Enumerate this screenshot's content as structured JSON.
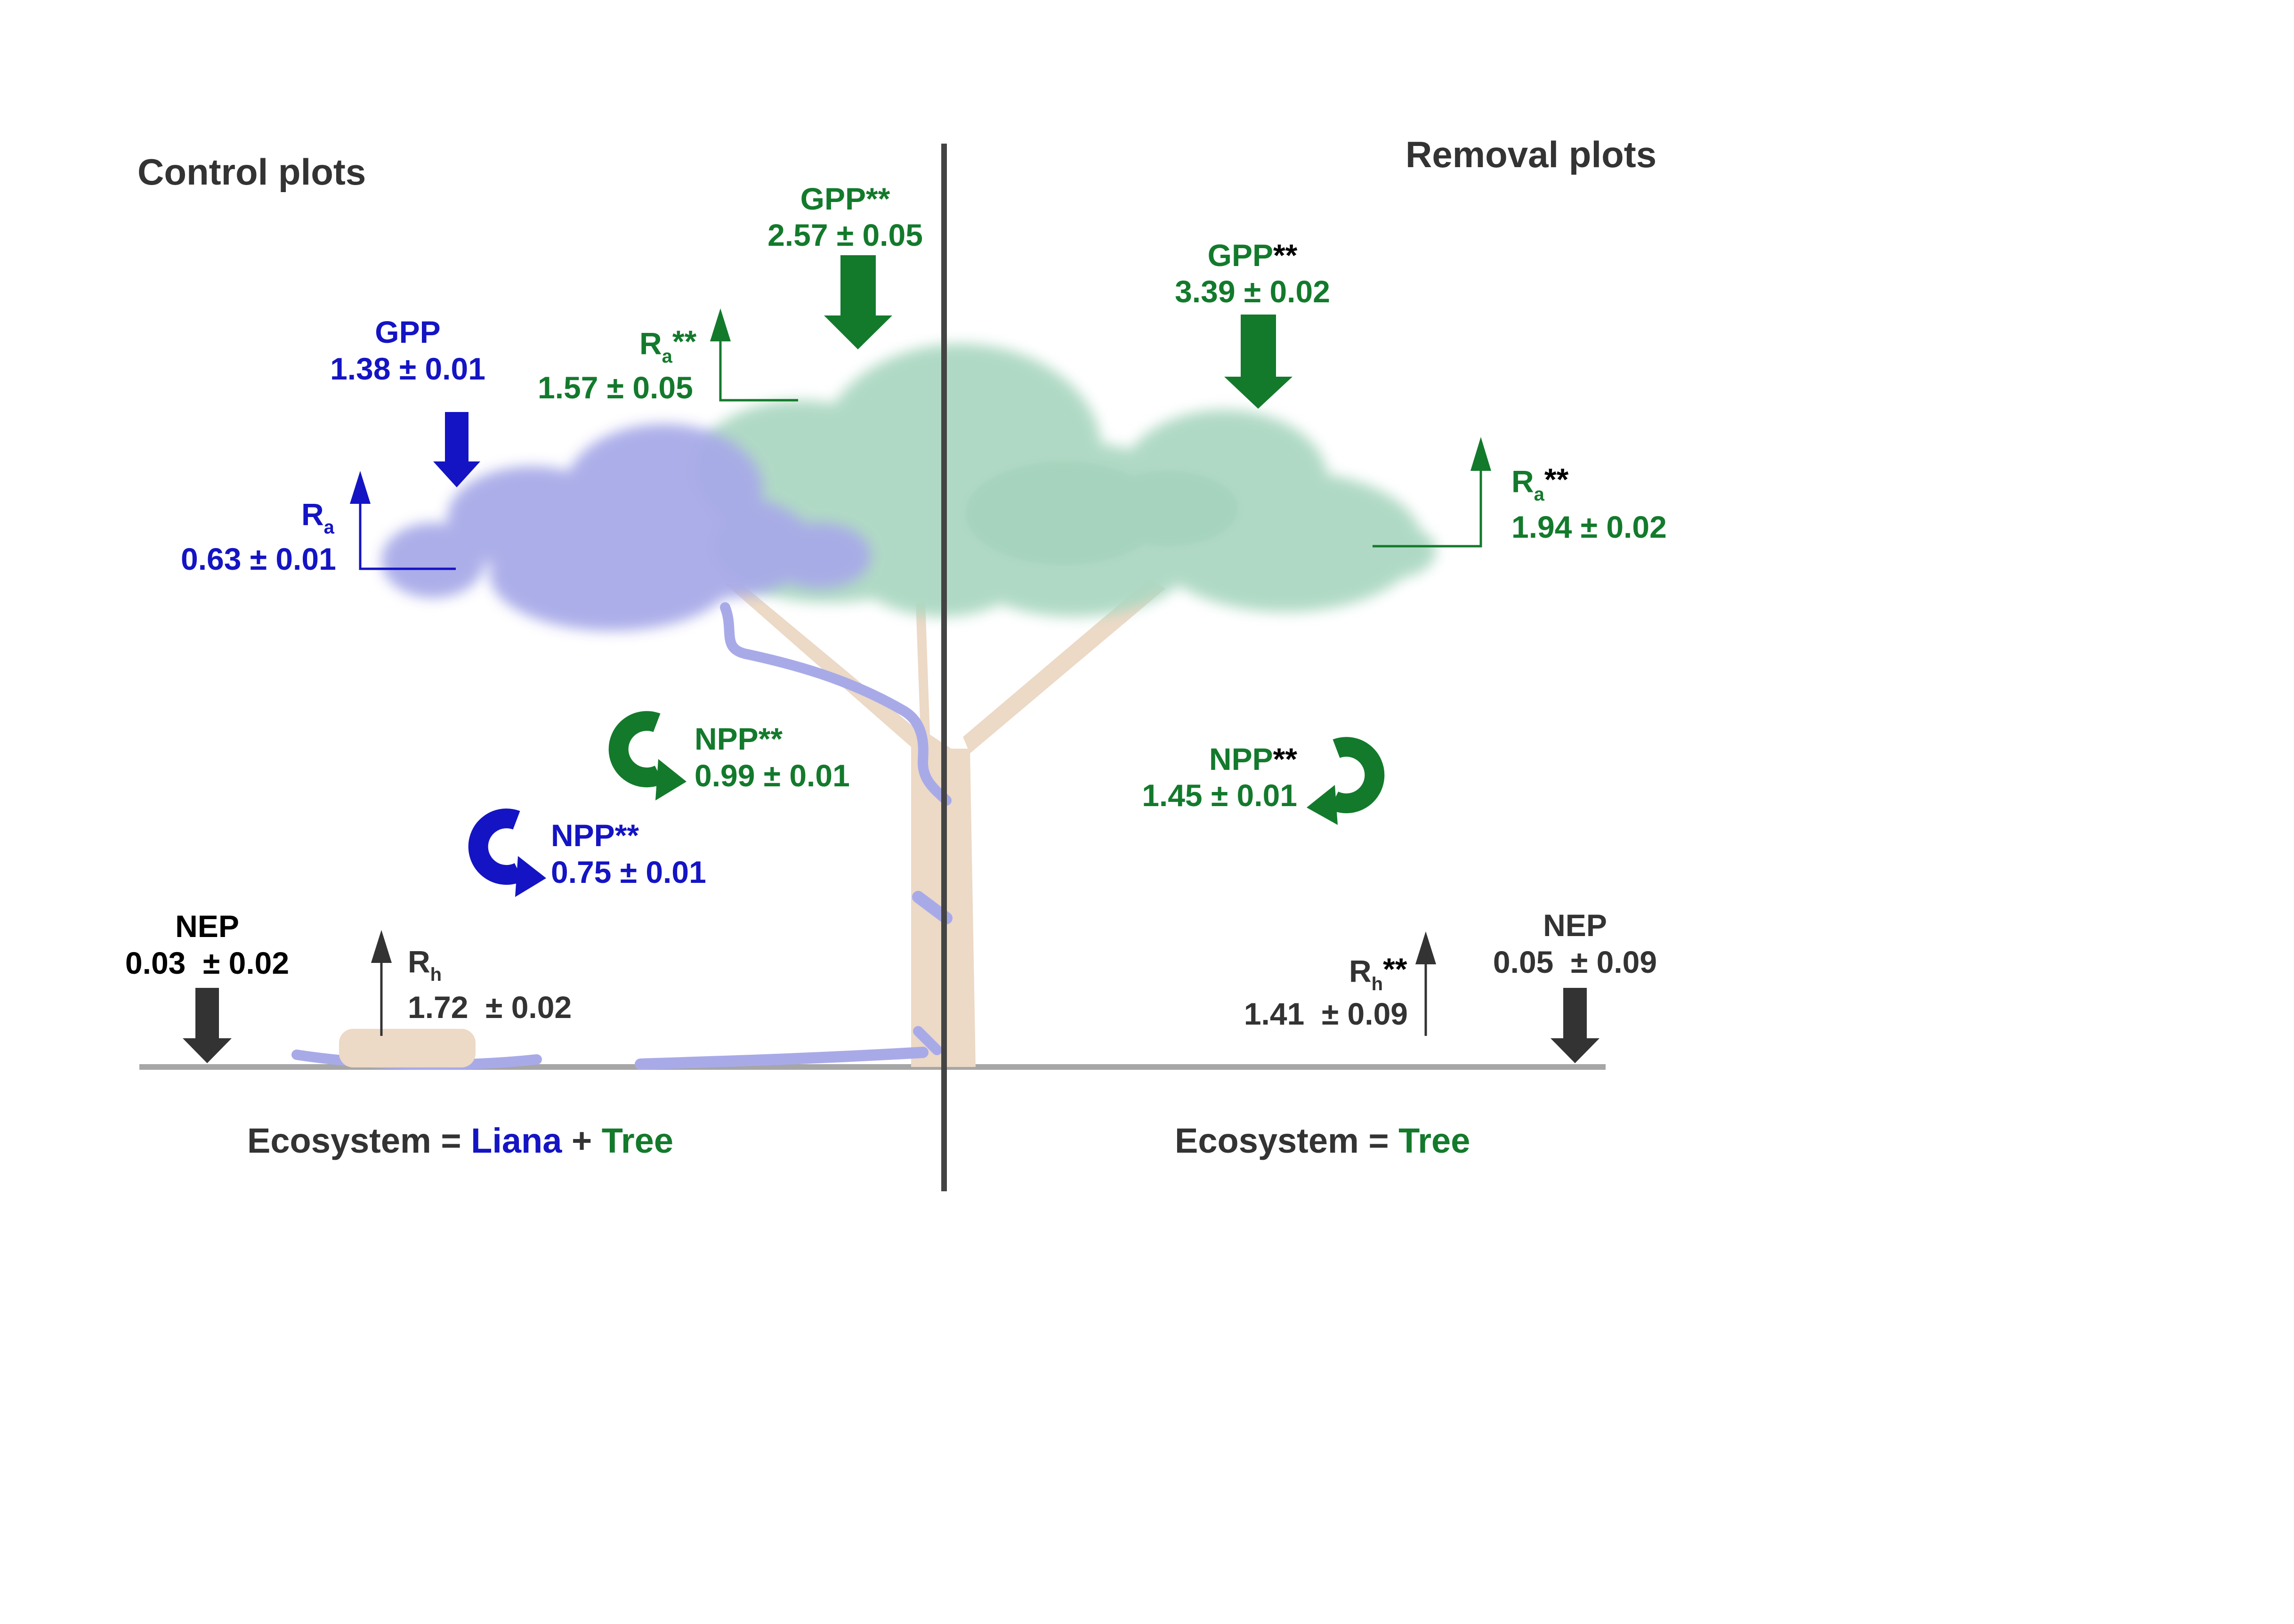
{
  "headings": {
    "control": "Control plots",
    "removal": "Removal plots"
  },
  "control": {
    "tree_gpp": {
      "label": "GPP",
      "sig": "**",
      "value": "2.57 ± 0.05"
    },
    "tree_ra": {
      "label": "R",
      "sub": "a",
      "sig": "**",
      "value": "1.57 ± 0.05"
    },
    "liana_gpp": {
      "label": "GPP",
      "value": "1.38 ± 0.01"
    },
    "liana_ra": {
      "label": "R",
      "sub": "a",
      "value": "0.63 ± 0.01"
    },
    "tree_npp": {
      "label": "NPP",
      "sig": "**",
      "value": "0.99 ± 0.01"
    },
    "liana_npp": {
      "label": "NPP",
      "sig": "**",
      "value": "0.75 ± 0.01"
    },
    "nep": {
      "label": "NEP",
      "value": "0.03  ± 0.02"
    },
    "rh": {
      "label": "R",
      "sub": "h",
      "value": "1.72  ± 0.02"
    },
    "equation": {
      "prefix": "Ecosystem = ",
      "liana": "Liana",
      "plus": " + ",
      "tree": "Tree"
    }
  },
  "removal": {
    "tree_gpp": {
      "label": "GPP",
      "sig": "**",
      "value": "3.39 ± 0.02"
    },
    "tree_ra": {
      "label": "R",
      "sub": "a",
      "sig": "**",
      "value": "1.94 ± 0.02"
    },
    "tree_npp": {
      "label": "NPP",
      "sig": "**",
      "value": "1.45 ± 0.01"
    },
    "rh": {
      "label": "R",
      "sub": "h",
      "sig": "**",
      "value": "1.41  ± 0.09"
    },
    "nep": {
      "label": "NEP",
      "value": "0.05  ± 0.09"
    },
    "equation": {
      "prefix": "Ecosystem = ",
      "tree": "Tree"
    }
  },
  "colors": {
    "liana": "#1414c4",
    "tree": "#137a2c",
    "dark": "#333333",
    "liana_canopy": "#a8aae8",
    "tree_canopy": "#acd8c2",
    "trunk": "#ecd9c6",
    "ground": "#a6a6a6"
  }
}
